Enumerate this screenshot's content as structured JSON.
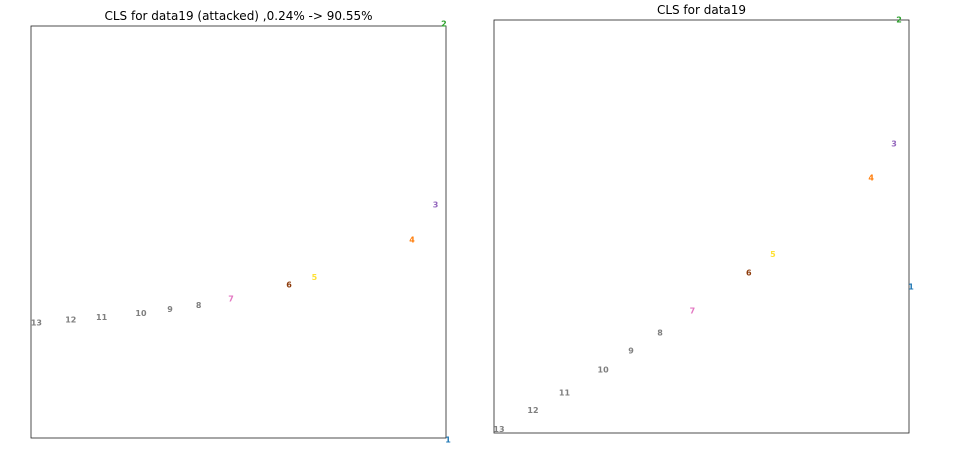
{
  "chart_data": [
    {
      "type": "scatter",
      "title": "CLS for data19 (attacked) ,0.24% -> 90.55%",
      "xlim": [
        0,
        1
      ],
      "ylim": [
        0,
        1
      ],
      "grid": false,
      "points": [
        {
          "label": "1",
          "x": 1.005,
          "y": -0.005,
          "color": "#1f77b4"
        },
        {
          "label": "2",
          "x": 0.995,
          "y": 1.005,
          "color": "#2ca02c"
        },
        {
          "label": "3",
          "x": 0.975,
          "y": 0.566,
          "color": "#9467bd"
        },
        {
          "label": "4",
          "x": 0.918,
          "y": 0.481,
          "color": "#ff7f0e"
        },
        {
          "label": "5",
          "x": 0.683,
          "y": 0.389,
          "color": "#ffe135"
        },
        {
          "label": "6",
          "x": 0.622,
          "y": 0.371,
          "color": "#8c3a0a"
        },
        {
          "label": "7",
          "x": 0.482,
          "y": 0.337,
          "color": "#e377c2"
        },
        {
          "label": "8",
          "x": 0.404,
          "y": 0.322,
          "color": "#7f7f7f"
        },
        {
          "label": "9",
          "x": 0.335,
          "y": 0.312,
          "color": "#7f7f7f"
        },
        {
          "label": "10",
          "x": 0.265,
          "y": 0.302,
          "color": "#7f7f7f"
        },
        {
          "label": "11",
          "x": 0.17,
          "y": 0.293,
          "color": "#7f7f7f"
        },
        {
          "label": "12",
          "x": 0.096,
          "y": 0.286,
          "color": "#7f7f7f"
        },
        {
          "label": "13",
          "x": 0.013,
          "y": 0.279,
          "color": "#7f7f7f"
        }
      ]
    },
    {
      "type": "scatter",
      "title": "CLS for data19",
      "xlim": [
        0,
        1
      ],
      "ylim": [
        0,
        1
      ],
      "grid": false,
      "points": [
        {
          "label": "1",
          "x": 1.005,
          "y": 0.354,
          "color": "#1f77b4"
        },
        {
          "label": "2",
          "x": 0.976,
          "y": 1.0,
          "color": "#2ca02c"
        },
        {
          "label": "3",
          "x": 0.964,
          "y": 0.7,
          "color": "#9467bd"
        },
        {
          "label": "4",
          "x": 0.909,
          "y": 0.617,
          "color": "#ff7f0e"
        },
        {
          "label": "5",
          "x": 0.672,
          "y": 0.432,
          "color": "#ffe135"
        },
        {
          "label": "6",
          "x": 0.614,
          "y": 0.388,
          "color": "#8c3a0a"
        },
        {
          "label": "7",
          "x": 0.478,
          "y": 0.295,
          "color": "#e377c2"
        },
        {
          "label": "8",
          "x": 0.4,
          "y": 0.242,
          "color": "#7f7f7f"
        },
        {
          "label": "9",
          "x": 0.33,
          "y": 0.198,
          "color": "#7f7f7f"
        },
        {
          "label": "10",
          "x": 0.263,
          "y": 0.152,
          "color": "#7f7f7f"
        },
        {
          "label": "11",
          "x": 0.17,
          "y": 0.097,
          "color": "#7f7f7f"
        },
        {
          "label": "12",
          "x": 0.094,
          "y": 0.054,
          "color": "#7f7f7f"
        },
        {
          "label": "13",
          "x": 0.012,
          "y": 0.008,
          "color": "#7f7f7f"
        }
      ]
    }
  ]
}
